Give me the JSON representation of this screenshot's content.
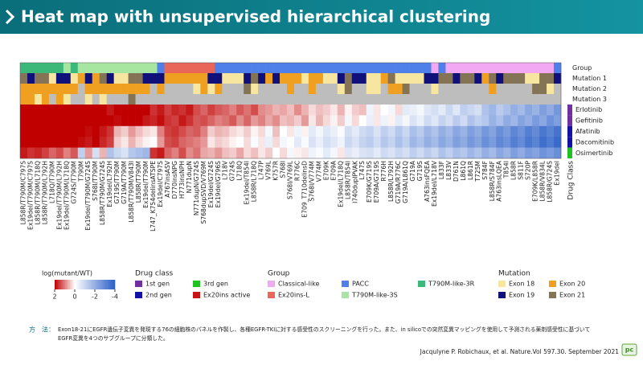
{
  "header": {
    "title": "Heat map with unsupervised hierarchical clustering"
  },
  "heatmap": {
    "annotation_labels": [
      "Group",
      "Mutation 1",
      "Mutation 2",
      "Mutation 3"
    ],
    "columns": [
      "L858R/T790M/C797S",
      "Ex19del/T790M/C797S",
      "L858R/T790M/L718Q",
      "L858R/T790M/L792H",
      "L718Q/T790M",
      "Ex19del/T790M/L792H",
      "Ex19del/T790M/L718Q",
      "G724S/T790M",
      "T790M",
      "Ex19del/T790M/G724S",
      "S768I/T790M",
      "L858R/T790M/G724S",
      "Ex19del/L792H",
      "G719S/T790M",
      "G719A/T790M",
      "L858R/T790M/V843I",
      "L858R/T790M",
      "Ex19del/T790M",
      "L747_K754delinsATSPE",
      "Ex19del/C797S",
      "A767insASV",
      "D770insNPG",
      "H773insNPH",
      "N771dupN",
      "N771dupN/G724S",
      "S768dupSVD/V769M",
      "Ex19del/G724S",
      "Ex19del/G796S",
      "L718V",
      "G724S",
      "L718Q",
      "Ex19del/T854I",
      "L858R/L718Q",
      "L747P",
      "V769L",
      "K757R",
      "S768I",
      "S768I/V769L",
      "R776C",
      "E709_T710delinsD",
      "S768I/V774M",
      "V774M",
      "E709K",
      "E709A",
      "Ex19del/L718Q",
      "L858R/T854I",
      "I740dupIPVAK",
      "L747S",
      "E709K/G719S",
      "E709A/G719S",
      "R776H",
      "L858R/L792H",
      "G719A/R776C",
      "G719A/L861Q",
      "G719A",
      "G719S",
      "A763insFQEA",
      "Ex19del/L718V",
      "L833F",
      "L833V",
      "D761N",
      "L861Q",
      "L861R",
      "T725M",
      "S784F",
      "L858R/S784F",
      "A763insLQEA",
      "T854I",
      "L858R",
      "S811F",
      "S720P",
      "E709K/L858R",
      "L858R/V834L",
      "L858R/G724S",
      "Ex19del"
    ],
    "group": [
      "T790M-like-3R",
      "T790M-like-3R",
      "T790M-like-3R",
      "T790M-like-3R",
      "T790M-like-3R",
      "T790M-like-3R",
      "T790M-like-3S",
      "T790M-like-3R",
      "T790M-like-3S",
      "T790M-like-3S",
      "T790M-like-3S",
      "T790M-like-3S",
      "T790M-like-3S",
      "T790M-like-3S",
      "T790M-like-3S",
      "T790M-like-3S",
      "T790M-like-3S",
      "T790M-like-3S",
      "T790M-like-3S",
      "PACC",
      "Ex20ins-L",
      "Ex20ins-L",
      "Ex20ins-L",
      "Ex20ins-L",
      "Ex20ins-L",
      "Ex20ins-L",
      "Ex20ins-L",
      "PACC",
      "PACC",
      "PACC",
      "PACC",
      "PACC",
      "PACC",
      "PACC",
      "PACC",
      "PACC",
      "PACC",
      "PACC",
      "PACC",
      "PACC",
      "PACC",
      "PACC",
      "PACC",
      "PACC",
      "PACC",
      "PACC",
      "PACC",
      "PACC",
      "PACC",
      "PACC",
      "PACC",
      "PACC",
      "PACC",
      "PACC",
      "PACC",
      "PACC",
      "PACC",
      "Classical-like",
      "PACC",
      "Classical-like",
      "Classical-like",
      "Classical-like",
      "Classical-like",
      "Classical-like",
      "Classical-like",
      "Classical-like",
      "Classical-like",
      "Classical-like",
      "Classical-like",
      "Classical-like",
      "Classical-like",
      "Classical-like",
      "Classical-like",
      "Classical-like",
      "PACC"
    ],
    "mutation1": [
      "Exon 21",
      "Exon 19",
      "Exon 21",
      "Exon 21",
      "Exon 18",
      "Exon 19",
      "Exon 19",
      "Exon 18",
      "Exon 20",
      "Exon 19",
      "Exon 20",
      "Exon 21",
      "Exon 19",
      "Exon 18",
      "Exon 18",
      "Exon 21",
      "Exon 21",
      "Exon 19",
      "Exon 19",
      "Exon 19",
      "Exon 20",
      "Exon 20",
      "Exon 20",
      "Exon 20",
      "Exon 20",
      "Exon 20",
      "Exon 19",
      "Exon 19",
      "Exon 18",
      "Exon 18",
      "Exon 18",
      "Exon 19",
      "Exon 21",
      "Exon 19",
      "Exon 20",
      "Exon 19",
      "Exon 20",
      "Exon 20",
      "Exon 20",
      "Exon 18",
      "Exon 20",
      "Exon 20",
      "Exon 18",
      "Exon 18",
      "Exon 19",
      "Exon 21",
      "Exon 19",
      "Exon 19",
      "Exon 18",
      "Exon 18",
      "Exon 20",
      "Exon 21",
      "Exon 18",
      "Exon 18",
      "Exon 18",
      "Exon 18",
      "Exon 19",
      "Exon 19",
      "Exon 21",
      "Exon 21",
      "Exon 19",
      "Exon 21",
      "Exon 21",
      "Exon 19",
      "Exon 20",
      "Exon 21",
      "Exon 19",
      "Exon 21",
      "Exon 21",
      "Exon 21",
      "Exon 18",
      "Exon 18",
      "Exon 21",
      "Exon 21",
      "Exon 19"
    ],
    "mutation2": [
      "Exon 20",
      "Exon 20",
      "Exon 20",
      "Exon 20",
      "Exon 20",
      "Exon 20",
      "Exon 20",
      "Exon 20",
      null,
      "Exon 20",
      "Exon 20",
      "Exon 20",
      "Exon 20",
      "Exon 20",
      "Exon 20",
      "Exon 20",
      "Exon 20",
      "Exon 20",
      null,
      "Exon 20",
      null,
      null,
      null,
      null,
      "Exon 18",
      "Exon 20",
      "Exon 18",
      "Exon 20",
      null,
      null,
      null,
      "Exon 21",
      "Exon 18",
      null,
      null,
      null,
      null,
      "Exon 20",
      null,
      null,
      "Exon 20",
      null,
      null,
      null,
      "Exon 18",
      "Exon 21",
      null,
      null,
      "Exon 18",
      "Exon 18",
      null,
      "Exon 20",
      "Exon 20",
      "Exon 21",
      null,
      null,
      null,
      "Exon 18",
      null,
      null,
      null,
      null,
      null,
      null,
      null,
      "Exon 20",
      null,
      null,
      null,
      null,
      null,
      "Exon 21",
      "Exon 21",
      "Exon 18",
      null
    ],
    "mutation3": [
      "Exon 20",
      "Exon 20",
      "Exon 18",
      "Exon 20",
      null,
      "Exon 20",
      "Exon 18",
      null,
      null,
      "Exon 18",
      null,
      "Exon 18",
      null,
      null,
      null,
      "Exon 21",
      null,
      null,
      null,
      null,
      null,
      null,
      null,
      null,
      null,
      null,
      null,
      null,
      null,
      null,
      null,
      null,
      null,
      null,
      null,
      null,
      null,
      null,
      null,
      null,
      null,
      null,
      null,
      null,
      null,
      null,
      null,
      null,
      null,
      null,
      null,
      null,
      null,
      null,
      null,
      null,
      null,
      null,
      null,
      null,
      null,
      null,
      null,
      null,
      null,
      null,
      null,
      null,
      null,
      null,
      null,
      null,
      null,
      null,
      null
    ],
    "rows": [
      {
        "name": "Erlotinib",
        "class": "1st gen",
        "values": [
          2,
          2,
          2,
          2,
          2,
          2,
          2,
          2,
          2,
          2,
          2,
          2,
          1.8,
          2,
          2,
          2,
          2,
          2,
          1.6,
          1.8,
          1.5,
          1.7,
          1.6,
          1.8,
          1.4,
          1.2,
          1.5,
          1.3,
          1.2,
          1.0,
          1.3,
          1.1,
          1.4,
          0.9,
          0.8,
          0.6,
          0.7,
          0.5,
          0.9,
          0.6,
          0.3,
          0.5,
          0.4,
          0.2,
          0.6,
          0.1,
          0.4,
          0.5,
          -0.3,
          0.2,
          0.0,
          -0.2,
          0.3,
          -0.5,
          -0.4,
          -0.2,
          -0.6,
          -0.8,
          -0.5,
          -1.0,
          -0.6,
          -1.2,
          -1.0,
          -0.8,
          -1.5,
          -1.8,
          -1.3,
          -1.6,
          -2.0,
          -1.7,
          -2.2,
          -1.9,
          -2.4,
          -2.1,
          -2.6
        ]
      },
      {
        "name": "Gefitinib",
        "class": "1st gen",
        "values": [
          2,
          2,
          2,
          2,
          2,
          2,
          2,
          2,
          2,
          2,
          2,
          2,
          2,
          1.9,
          2,
          2,
          2,
          1.8,
          1.7,
          1.9,
          1.6,
          1.5,
          1.8,
          1.6,
          1.3,
          1.4,
          1.2,
          1.0,
          1.1,
          1.3,
          0.9,
          1.2,
          0.8,
          1.0,
          0.7,
          0.9,
          0.5,
          0.6,
          0.4,
          0.8,
          0.2,
          0.6,
          0.3,
          0.1,
          0.4,
          -0.2,
          0.3,
          0.0,
          -0.4,
          0.2,
          -0.3,
          0.1,
          -0.5,
          -0.2,
          -0.7,
          -0.4,
          -0.9,
          -0.6,
          -1.1,
          -0.8,
          -1.3,
          -0.9,
          -1.5,
          -1.2,
          -1.4,
          -1.9,
          -1.6,
          -2.1,
          -1.8,
          -2.3,
          -2.0,
          -2.5,
          -2.2,
          -2.7,
          -2.4
        ]
      },
      {
        "name": "Afatinib",
        "class": "2nd gen",
        "values": [
          2,
          2,
          2,
          2,
          2,
          2,
          2,
          2,
          2,
          1.9,
          2,
          1.8,
          1.6,
          0.6,
          0.4,
          0.8,
          0.5,
          0.3,
          0.2,
          1.0,
          1.5,
          1.6,
          1.4,
          1.2,
          1.3,
          1.0,
          0.4,
          0.6,
          0.5,
          0.3,
          0.2,
          0.4,
          0.1,
          0.3,
          -0.2,
          0.5,
          0.0,
          0.2,
          -0.3,
          0.1,
          -0.5,
          -0.2,
          -0.6,
          -0.4,
          -0.1,
          -0.8,
          -0.5,
          -0.9,
          -1.1,
          -0.7,
          -1.2,
          -0.9,
          -1.4,
          -1.0,
          -1.6,
          -1.3,
          -1.8,
          -1.5,
          -2.0,
          -1.7,
          -2.2,
          -1.9,
          -2.4,
          -2.1,
          -2.6,
          -2.3,
          -2.8,
          -2.5,
          -3.0,
          -2.7,
          -3.2,
          -2.9,
          -3.4,
          -3.1,
          -3.5
        ]
      },
      {
        "name": "Dacomitinib",
        "class": "2nd gen",
        "values": [
          2,
          2,
          2,
          2,
          2,
          2,
          2,
          2,
          1.9,
          1.8,
          2,
          1.7,
          1.5,
          0.4,
          0.2,
          0.6,
          0.3,
          0.1,
          0.0,
          0.8,
          1.4,
          1.5,
          1.2,
          1.1,
          1.0,
          0.8,
          0.2,
          0.4,
          0.3,
          0.1,
          0.0,
          0.3,
          -0.1,
          0.2,
          -0.4,
          0.3,
          -0.2,
          0.0,
          -0.5,
          -0.1,
          -0.7,
          -0.4,
          -0.8,
          -0.6,
          -0.3,
          -1.0,
          -0.7,
          -1.1,
          -1.3,
          -0.9,
          -1.4,
          -1.1,
          -1.6,
          -1.2,
          -1.8,
          -1.5,
          -2.0,
          -1.7,
          -2.2,
          -1.9,
          -2.4,
          -2.1,
          -2.6,
          -2.3,
          -2.8,
          -2.5,
          -3.0,
          -2.7,
          -3.2,
          -2.9,
          -3.4,
          -3.1,
          -3.6,
          -3.3,
          -3.7
        ]
      },
      {
        "name": "Osimertinib",
        "class": "3rd gen",
        "values": [
          1.8,
          1.6,
          1.7,
          1.5,
          1.2,
          1.4,
          1.0,
          1.3,
          -1.2,
          0.8,
          -0.8,
          0.6,
          -1.5,
          -1.0,
          -0.7,
          -1.4,
          -1.6,
          -1.8,
          1.6,
          1.8,
          1.2,
          1.0,
          1.4,
          0.9,
          1.1,
          0.7,
          0.6,
          0.8,
          0.5,
          0.4,
          0.7,
          0.3,
          0.5,
          0.2,
          0.4,
          0.0,
          0.3,
          -0.2,
          0.1,
          0.2,
          -0.3,
          -0.1,
          -0.5,
          -0.2,
          0.2,
          -0.6,
          -0.4,
          -0.7,
          -0.8,
          -0.5,
          -0.9,
          -0.7,
          -1.0,
          -0.8,
          -1.2,
          -0.9,
          -1.3,
          -1.0,
          -1.5,
          -1.2,
          -1.6,
          -1.4,
          -1.8,
          -1.5,
          -2.0,
          -1.7,
          -2.2,
          -1.9,
          -2.4,
          -2.1,
          -2.5,
          -2.3,
          -2.7,
          -2.5,
          -2.8
        ]
      }
    ],
    "drug_class_label": "Drug Class"
  },
  "legends": {
    "colorbar": {
      "title": "log(mutant/WT)",
      "range": [
        2,
        -4
      ],
      "ticks": [
        2,
        0,
        -2,
        -4
      ],
      "colors": [
        "#c00000",
        "#ffffff",
        "#2a5fc8"
      ]
    },
    "drug_class": {
      "title": "Drug class",
      "items": [
        {
          "label": "1st gen",
          "color": "#7030a0"
        },
        {
          "label": "2nd gen",
          "color": "#1212a8"
        },
        {
          "label": "3rd gen",
          "color": "#22c022"
        },
        {
          "label": "Ex20ins active",
          "color": "#c81414"
        }
      ]
    },
    "group": {
      "title": "Group",
      "items": [
        {
          "label": "Classical-like",
          "color": "#f2a8f2"
        },
        {
          "label": "Ex20ins-L",
          "color": "#e8665a"
        },
        {
          "label": "PACC",
          "color": "#4f7fe8"
        },
        {
          "label": "T790M-like-3S",
          "color": "#a6e6a0"
        },
        {
          "label": "T790M-like-3R",
          "color": "#3cb878"
        }
      ]
    },
    "mutation": {
      "title": "Mutation",
      "items": [
        {
          "label": "Exon 18",
          "color": "#f7e6a0"
        },
        {
          "label": "Exon 19",
          "color": "#10107a"
        },
        {
          "label": "Exon 20",
          "color": "#f0a020"
        },
        {
          "label": "Exon 21",
          "color": "#857355"
        }
      ]
    }
  },
  "footnote": {
    "label": "方　法：",
    "text1": "Exon18-21にEGFR遺伝子変異を発現する76の細胞株のパネルを作製し、各種EGFR-TKIに対する感受性のスクリーニングを行った。また、in silicoでの突然変異マッピングを使用して予測される薬剤感受性に基づいて",
    "text2": "EGFR変異を4つのサブグループに分類した。"
  },
  "citation": "Jacqulyne P. Robichaux, et al. Nature.Vol 597.30. September 2021",
  "logo": "pc"
}
